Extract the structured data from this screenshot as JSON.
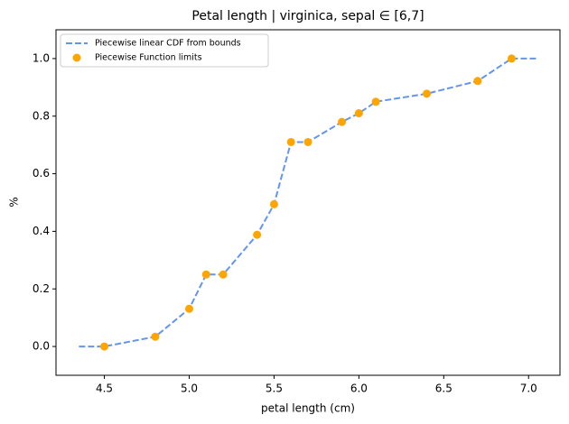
{
  "chart_data": {
    "type": "line",
    "title": "Petal length | virginica, sepal ∈ [6,7]",
    "xlabel": "petal length (cm)",
    "ylabel": "%",
    "xlim": [
      4.215,
      7.185
    ],
    "ylim": [
      -0.1,
      1.1
    ],
    "xticks": [
      4.5,
      {
        "value": 5.0,
        "label": "5.0"
      },
      5.5,
      {
        "value": 6.0,
        "label": "6.0"
      },
      6.5,
      {
        "value": 7.0,
        "label": "7.0"
      }
    ],
    "yticks": [
      {
        "value": 0.0,
        "label": "0.0"
      },
      {
        "value": 0.2,
        "label": "0.2"
      },
      {
        "value": 0.4,
        "label": "0.4"
      },
      {
        "value": 0.6,
        "label": "0.6"
      },
      {
        "value": 0.8,
        "label": "0.8"
      },
      {
        "value": 1.0,
        "label": "1.0"
      }
    ],
    "legend": "upper left",
    "series": [
      {
        "name": "Piecewise linear CDF from bounds",
        "color": "#6495ed",
        "style": "dashed",
        "x": [
          4.35,
          4.5,
          4.8,
          5.0,
          5.1,
          5.2,
          5.4,
          5.5,
          5.6,
          5.7,
          5.9,
          6.0,
          6.1,
          6.4,
          6.7,
          6.9,
          7.05
        ],
        "values": [
          0,
          0,
          0.034,
          0.131,
          0.25,
          0.25,
          0.388,
          0.494,
          0.71,
          0.71,
          0.78,
          0.81,
          0.85,
          0.878,
          0.922,
          1.0,
          1.0
        ]
      },
      {
        "name": "Piecewise Function limits",
        "color": "#ffa500",
        "style": "scatter",
        "x": [
          4.5,
          4.8,
          5.0,
          5.1,
          5.2,
          5.4,
          5.5,
          5.6,
          5.7,
          5.9,
          6.0,
          6.1,
          6.4,
          6.7,
          6.9
        ],
        "values": [
          0,
          0.034,
          0.131,
          0.25,
          0.25,
          0.388,
          0.494,
          0.71,
          0.71,
          0.78,
          0.81,
          0.85,
          0.878,
          0.922,
          1.0
        ]
      }
    ]
  }
}
